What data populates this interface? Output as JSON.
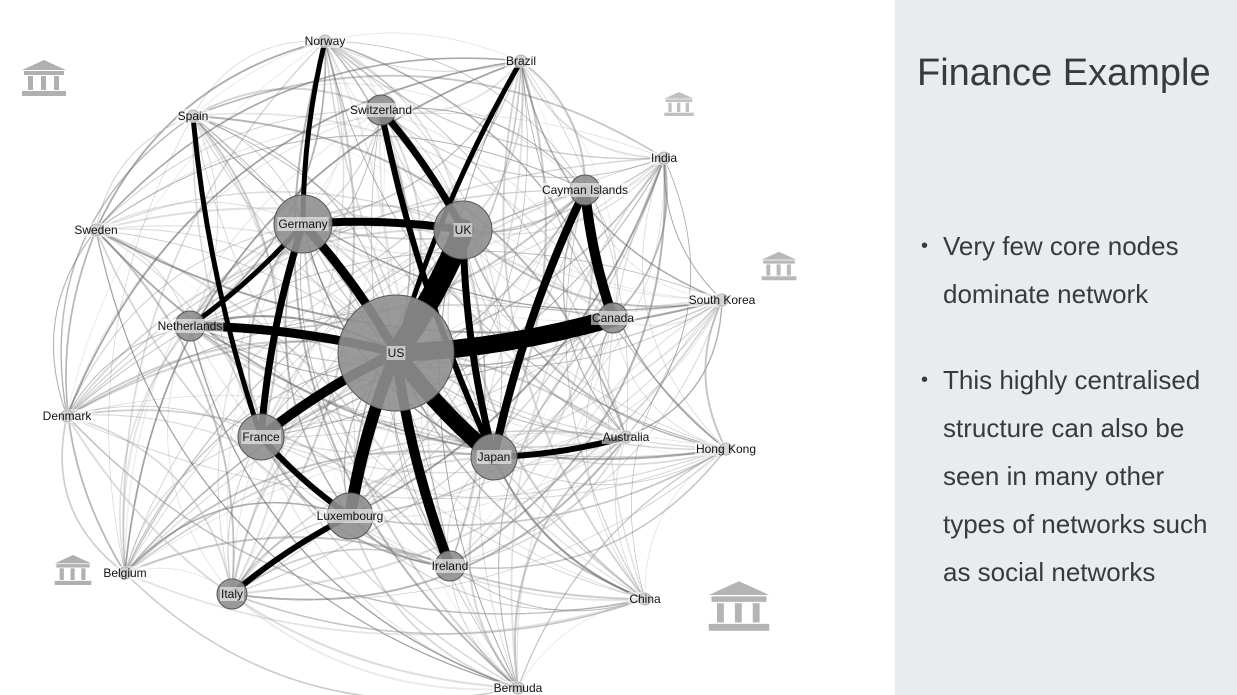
{
  "slide": {
    "title": "Finance Example",
    "bullets": [
      "Very few core nodes dominate network",
      "This highly centralised structure can also be seen in many other types of networks such as social networks"
    ]
  },
  "network": {
    "nodes": [
      {
        "id": "US",
        "label": "US",
        "size": "huge"
      },
      {
        "id": "UK",
        "label": "UK",
        "size": "large"
      },
      {
        "id": "Germany",
        "label": "Germany",
        "size": "large"
      },
      {
        "id": "Japan",
        "label": "Japan",
        "size": "medium"
      },
      {
        "id": "France",
        "label": "France",
        "size": "medium"
      },
      {
        "id": "Luxembourg",
        "label": "Luxembourg",
        "size": "medium"
      },
      {
        "id": "Netherlands",
        "label": "Netherlands",
        "size": "small"
      },
      {
        "id": "Ireland",
        "label": "Ireland",
        "size": "small"
      },
      {
        "id": "Canada",
        "label": "Canada",
        "size": "small"
      },
      {
        "id": "Cayman",
        "label": "Cayman Islands",
        "size": "small"
      },
      {
        "id": "Switzerland",
        "label": "Switzerland",
        "size": "small"
      },
      {
        "id": "Italy",
        "label": "Italy",
        "size": "small"
      },
      {
        "id": "Australia",
        "label": "Australia",
        "size": "tiny"
      },
      {
        "id": "Norway",
        "label": "Norway",
        "size": "tiny"
      },
      {
        "id": "Brazil",
        "label": "Brazil",
        "size": "tiny"
      },
      {
        "id": "India",
        "label": "India",
        "size": "tiny"
      },
      {
        "id": "Spain",
        "label": "Spain",
        "size": "tiny"
      },
      {
        "id": "Sweden",
        "label": "Sweden",
        "size": "tiny"
      },
      {
        "id": "SouthKorea",
        "label": "South Korea",
        "size": "tiny"
      },
      {
        "id": "Denmark",
        "label": "Denmark",
        "size": "tiny"
      },
      {
        "id": "HongKong",
        "label": "Hong Kong",
        "size": "tiny"
      },
      {
        "id": "Belgium",
        "label": "Belgium",
        "size": "tiny"
      },
      {
        "id": "China",
        "label": "China",
        "size": "tiny"
      },
      {
        "id": "Bermuda",
        "label": "Bermuda",
        "size": "tiny"
      }
    ],
    "strong_links": [
      [
        "US",
        "UK"
      ],
      [
        "US",
        "Canada"
      ],
      [
        "US",
        "Japan"
      ],
      [
        "US",
        "Luxembourg"
      ],
      [
        "US",
        "Ireland"
      ],
      [
        "US",
        "France"
      ],
      [
        "US",
        "Germany"
      ],
      [
        "US",
        "Netherlands"
      ],
      [
        "UK",
        "Germany"
      ],
      [
        "UK",
        "Japan"
      ],
      [
        "UK",
        "Switzerland"
      ],
      [
        "Cayman",
        "Canada"
      ],
      [
        "Cayman",
        "Japan"
      ],
      [
        "Germany",
        "France"
      ],
      [
        "France",
        "Luxembourg"
      ],
      [
        "Luxembourg",
        "Italy"
      ],
      [
        "Netherlands",
        "Germany"
      ],
      [
        "Spain",
        "France"
      ],
      [
        "Switzerland",
        "Japan"
      ],
      [
        "Brazil",
        "US"
      ],
      [
        "Norway",
        "Germany"
      ],
      [
        "Japan",
        "Australia"
      ]
    ]
  },
  "icons": [
    "bank-icon",
    "bank-icon",
    "bank-icon",
    "bank-icon",
    "bank-icon"
  ]
}
